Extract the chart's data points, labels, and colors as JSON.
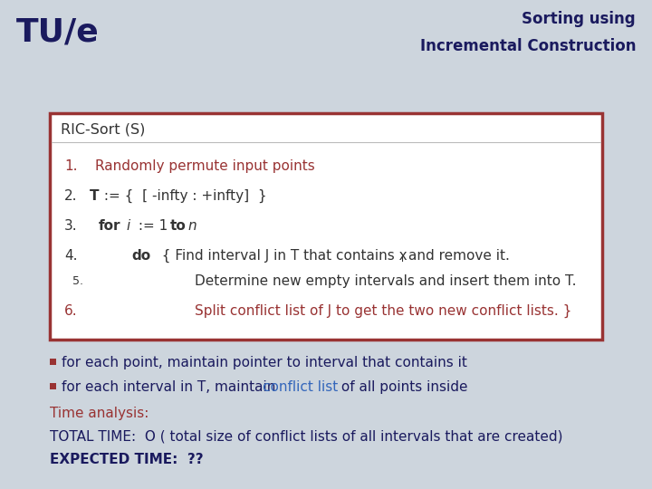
{
  "bg_color": "#cdd5dd",
  "header_bg": "#ffffff",
  "title_right_line1": "Sorting using",
  "title_right_line2": "Incremental Construction",
  "title_right_color": "#1a1a5e",
  "logo_text": "TU/e",
  "logo_color": "#1a1a5e",
  "box_border_color": "#993333",
  "box_bg": "#ffffff",
  "box_title": "RIC-Sort (S)",
  "box_title_color": "#333333",
  "line1_color": "#993333",
  "line2_color": "#333333",
  "line3_color": "#333333",
  "line4_color": "#333333",
  "line5_color": "#333333",
  "line6_color": "#993333",
  "bullet_color": "#993333",
  "text_color": "#1a1a5e",
  "conflict_color": "#3366bb",
  "time_label_color": "#993333",
  "total_color": "#1a1a5e",
  "expected_color": "#1a1a5e"
}
